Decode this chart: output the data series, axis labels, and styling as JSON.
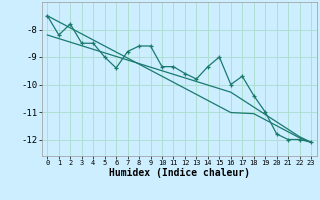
{
  "xlabel": "Humidex (Indice chaleur)",
  "background_color": "#cceeff",
  "grid_color": "#aaddcc",
  "line_color": "#1a7a6e",
  "x_data": [
    0,
    1,
    2,
    3,
    4,
    5,
    6,
    7,
    8,
    9,
    10,
    11,
    12,
    13,
    14,
    15,
    16,
    17,
    18,
    19,
    20,
    21,
    22,
    23
  ],
  "y_main": [
    -7.5,
    -8.2,
    -7.8,
    -8.5,
    -8.5,
    -9.0,
    -9.4,
    -8.8,
    -8.6,
    -8.6,
    -9.35,
    -9.35,
    -9.6,
    -9.8,
    -9.35,
    -9.0,
    -10.0,
    -9.7,
    -10.4,
    -11.0,
    -11.8,
    -12.0,
    -12.0,
    -12.1
  ],
  "y_trend1": [
    -7.5,
    -7.72,
    -7.94,
    -8.16,
    -8.38,
    -8.6,
    -8.82,
    -9.04,
    -9.26,
    -9.48,
    -9.7,
    -9.92,
    -10.14,
    -10.36,
    -10.58,
    -10.8,
    -11.02,
    -11.04,
    -11.06,
    -11.28,
    -11.5,
    -11.72,
    -11.94,
    -12.1
  ],
  "y_trend2": [
    -8.2,
    -8.33,
    -8.46,
    -8.59,
    -8.72,
    -8.85,
    -8.98,
    -9.11,
    -9.24,
    -9.37,
    -9.5,
    -9.63,
    -9.76,
    -9.89,
    -10.02,
    -10.15,
    -10.28,
    -10.55,
    -10.82,
    -11.09,
    -11.36,
    -11.63,
    -11.9,
    -12.1
  ],
  "ylim": [
    -12.6,
    -7.0
  ],
  "xlim": [
    -0.5,
    23.5
  ],
  "yticks": [
    -12,
    -11,
    -10,
    -9,
    -8
  ],
  "xticks": [
    0,
    1,
    2,
    3,
    4,
    5,
    6,
    7,
    8,
    9,
    10,
    11,
    12,
    13,
    14,
    15,
    16,
    17,
    18,
    19,
    20,
    21,
    22,
    23
  ],
  "xlabel_fontsize": 7,
  "tick_fontsize": 6.5
}
